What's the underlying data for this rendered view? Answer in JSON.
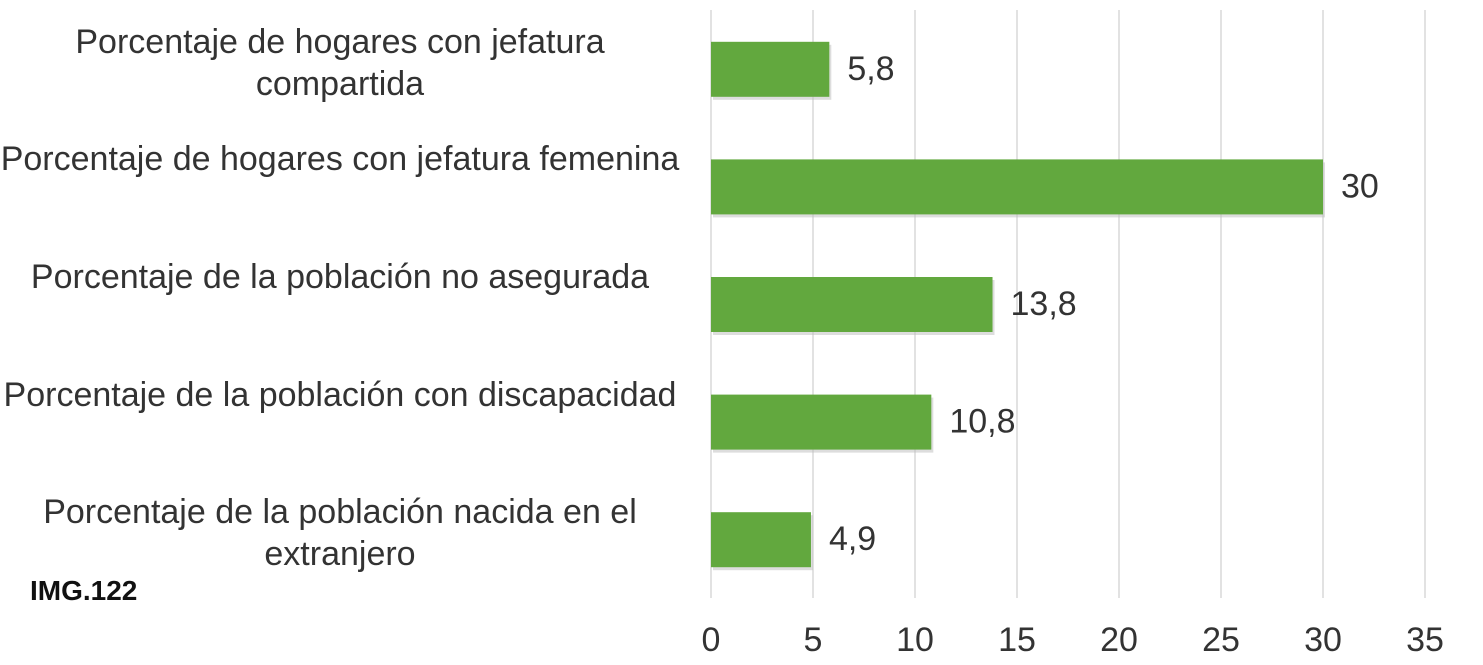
{
  "chart_data": {
    "type": "bar",
    "orientation": "horizontal",
    "categories": [
      "Porcentaje de hogares con jefatura compartida",
      "Porcentaje de hogares con jefatura femenina",
      "Porcentaje de la población no asegurada",
      "Porcentaje de la población con discapacidad",
      "Porcentaje de la población nacida en el extranjero"
    ],
    "values": [
      5.8,
      30,
      13.8,
      10.8,
      4.9
    ],
    "value_labels": [
      "5,8",
      "30",
      "13,8",
      "10,8",
      "4,9"
    ],
    "color": "#62a83e",
    "xlim": [
      0,
      35
    ],
    "xticks": [
      0,
      5,
      10,
      15,
      20,
      25,
      30,
      35
    ],
    "grid": true,
    "annotation": "IMG.122"
  }
}
